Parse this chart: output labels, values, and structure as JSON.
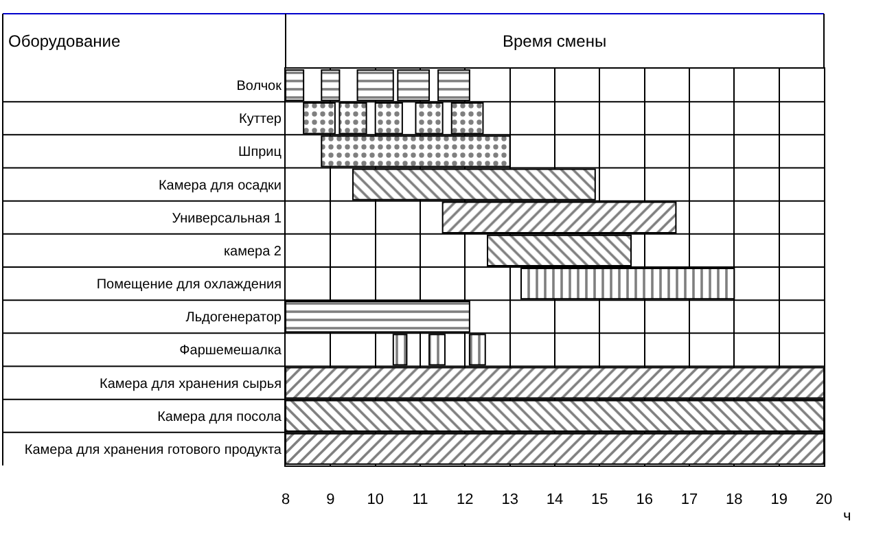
{
  "chart_data": {
    "type": "bar",
    "orientation": "horizontal",
    "title": "Время смены",
    "ylabel": "Оборудование",
    "xlabel": "ч",
    "categories": [
      "Волчок",
      "Куттер",
      "Шприц",
      "Камера для осадки",
      "Универсальная 1",
      "камера 2",
      "Помещение для охлаждения",
      "Льдогенератор",
      "Фаршемешалка",
      "Камера для хранения сырья",
      "Камера для посола",
      "Камера для хранения готового продукта"
    ],
    "series": [
      {
        "color": "#000000",
        "base": [
          8.0,
          8.4,
          8.8,
          9.5,
          11.5,
          12.5,
          13.25,
          8.0,
          10.4,
          8,
          8,
          8
        ],
        "values": [
          0.4,
          0.7,
          4.2,
          5.4,
          5.2,
          3.2,
          4.75,
          4.1,
          0.3,
          12,
          12,
          12
        ]
      },
      {
        "color": "#000000",
        "base": [
          8.8,
          9.2,
          null,
          null,
          null,
          null,
          null,
          null,
          11.2,
          null,
          null,
          null
        ],
        "values": [
          0.4,
          0.6,
          null,
          null,
          null,
          null,
          null,
          null,
          0.35,
          null,
          null,
          null
        ]
      },
      {
        "color": "#000000",
        "base": [
          9.6,
          10.0,
          null,
          null,
          null,
          null,
          null,
          null,
          12.1,
          null,
          null,
          null
        ],
        "values": [
          0.8,
          0.6,
          null,
          null,
          null,
          null,
          null,
          null,
          0.35,
          null,
          null,
          null
        ]
      },
      {
        "color": "#000000",
        "base": [
          10.5,
          10.9,
          null,
          null,
          null,
          null,
          null,
          null,
          null,
          null,
          null,
          null
        ],
        "values": [
          0.7,
          0.6,
          null,
          null,
          null,
          null,
          null,
          null,
          null,
          null,
          null,
          null
        ]
      },
      {
        "color": "#000000",
        "base": [
          11.4,
          11.7,
          null,
          null,
          null,
          null,
          null,
          null,
          null,
          null,
          null,
          null
        ],
        "values": [
          0.7,
          0.7,
          null,
          null,
          null,
          null,
          null,
          null,
          null,
          null,
          null,
          null
        ]
      }
    ],
    "xlim": [
      8,
      20
    ],
    "xticks": [
      8,
      9,
      10,
      11,
      12,
      13,
      14,
      15,
      16,
      17,
      18,
      19,
      20
    ],
    "grid": true,
    "legend": false
  }
}
